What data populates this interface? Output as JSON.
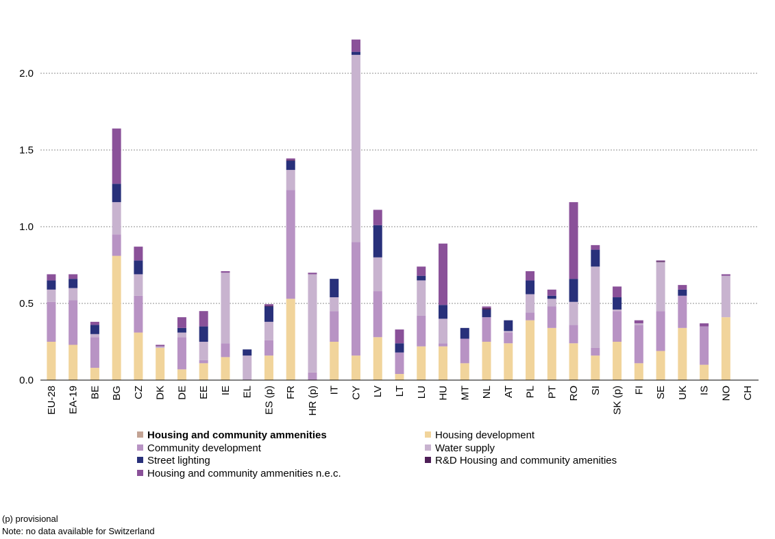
{
  "chart_data": {
    "type": "bar",
    "stacked": true,
    "title": "",
    "xlabel": "",
    "ylabel": "",
    "ylim": [
      0,
      2.25
    ],
    "yticks": [
      "0.0",
      "0.5",
      "1.0",
      "1.5",
      "2.0"
    ],
    "ytick_values": [
      0,
      0.5,
      1.0,
      1.5,
      2.0
    ],
    "grid": "horizontal-dashed",
    "legend_position": "bottom",
    "categories": [
      "EU-28",
      "EA-19",
      "BE",
      "BG",
      "CZ",
      "DK",
      "DE",
      "EE",
      "IE",
      "EL",
      "ES (p)",
      "FR",
      "HR (p)",
      "IT",
      "CY",
      "LV",
      "LT",
      "LU",
      "HU",
      "MT",
      "NL",
      "AT",
      "PL",
      "PT",
      "RO",
      "SI",
      "SK (p)",
      "FI",
      "SE",
      "UK",
      "IS",
      "NO",
      "CH"
    ],
    "series": [
      {
        "name": "Housing development",
        "color": "#F1D49B",
        "values": [
          0.25,
          0.23,
          0.08,
          0.81,
          0.31,
          0.21,
          0.07,
          0.11,
          0.15,
          0.0,
          0.16,
          0.53,
          0.0,
          0.25,
          0.16,
          0.28,
          0.04,
          0.22,
          0.22,
          0.11,
          0.25,
          0.24,
          0.39,
          0.34,
          0.24,
          0.16,
          0.25,
          0.11,
          0.19,
          0.34,
          0.1,
          0.41,
          0.0
        ]
      },
      {
        "name": "Community development",
        "color": "#B893C4",
        "values": [
          0.26,
          0.29,
          0.2,
          0.14,
          0.24,
          0.0,
          0.21,
          0.02,
          0.09,
          0.0,
          0.1,
          0.71,
          0.05,
          0.2,
          0.74,
          0.3,
          0.14,
          0.2,
          0.02,
          0.16,
          0.16,
          0.07,
          0.05,
          0.14,
          0.12,
          0.05,
          0.2,
          0.25,
          0.26,
          0.21,
          0.25,
          0.0,
          0.0
        ]
      },
      {
        "name": "Water supply",
        "color": "#C8B3CF",
        "values": [
          0.08,
          0.08,
          0.02,
          0.21,
          0.14,
          0.01,
          0.03,
          0.12,
          0.46,
          0.16,
          0.12,
          0.13,
          0.64,
          0.09,
          1.22,
          0.22,
          0.0,
          0.23,
          0.16,
          0.0,
          0.0,
          0.01,
          0.12,
          0.05,
          0.15,
          0.53,
          0.01,
          0.01,
          0.32,
          0.0,
          0.0,
          0.27,
          0.0
        ]
      },
      {
        "name": "Street lighting",
        "color": "#28307A",
        "values": [
          0.06,
          0.06,
          0.06,
          0.12,
          0.09,
          0.0,
          0.03,
          0.1,
          0.0,
          0.04,
          0.1,
          0.06,
          0.0,
          0.12,
          0.02,
          0.21,
          0.06,
          0.03,
          0.09,
          0.07,
          0.05,
          0.07,
          0.09,
          0.02,
          0.15,
          0.11,
          0.08,
          0.0,
          0.0,
          0.04,
          0.0,
          0.0,
          0.0
        ]
      },
      {
        "name": "R&D Housing and community amenities",
        "color": "#4E1E57",
        "values": [
          0,
          0,
          0,
          0,
          0,
          0,
          0,
          0,
          0,
          0,
          0.005,
          0.005,
          0,
          0,
          0,
          0,
          0,
          0,
          0,
          0,
          0.01,
          0,
          0,
          0,
          0,
          0,
          0,
          0,
          0.005,
          0,
          0,
          0,
          0
        ]
      },
      {
        "name": "Housing and community ammenities n.e.c.",
        "color": "#8A5199",
        "values": [
          0.04,
          0.03,
          0.02,
          0.36,
          0.09,
          0.01,
          0.07,
          0.1,
          0.01,
          0.0,
          0.01,
          0.01,
          0.01,
          0.0,
          0.08,
          0.1,
          0.09,
          0.06,
          0.4,
          0.0,
          0.01,
          0.0,
          0.06,
          0.04,
          0.5,
          0.03,
          0.07,
          0.02,
          0.005,
          0.03,
          0.02,
          0.01,
          0.0
        ]
      }
    ]
  },
  "legend": {
    "title_entry": "Housing and community ammenities",
    "title_entry_color": "#C3A394",
    "items": [
      {
        "label": "Housing development",
        "color": "#F1D49B"
      },
      {
        "label": "Community development",
        "color": "#B893C4"
      },
      {
        "label": "Water supply",
        "color": "#C8B3CF"
      },
      {
        "label": "Street lighting",
        "color": "#28307A"
      },
      {
        "label": "R&D Housing and community amenities",
        "color": "#4E1E57"
      },
      {
        "label": "Housing and community ammenities n.e.c.",
        "color": "#8A5199"
      }
    ]
  },
  "notes": {
    "provisional": "(p) provisional",
    "no_data": "Note: no data available for Switzerland"
  }
}
